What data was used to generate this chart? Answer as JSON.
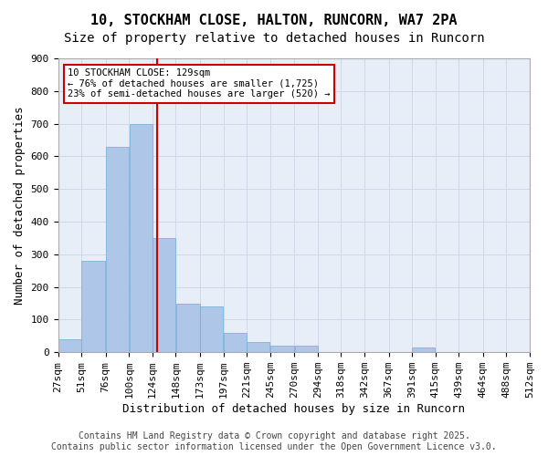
{
  "title_line1": "10, STOCKHAM CLOSE, HALTON, RUNCORN, WA7 2PA",
  "title_line2": "Size of property relative to detached houses in Runcorn",
  "xlabel": "Distribution of detached houses by size in Runcorn",
  "ylabel": "Number of detached properties",
  "bar_edges": [
    27,
    51,
    76,
    100,
    124,
    148,
    173,
    197,
    221,
    245,
    270,
    294,
    318,
    342,
    367,
    391,
    415,
    439,
    464,
    488,
    512
  ],
  "bar_heights": [
    40,
    280,
    630,
    700,
    350,
    150,
    140,
    60,
    30,
    20,
    20,
    0,
    0,
    0,
    0,
    15,
    0,
    0,
    0,
    0
  ],
  "bar_color": "#aec6e8",
  "bar_edgecolor": "#6baed6",
  "grid_color": "#d0d8e8",
  "background_color": "#e8eef8",
  "vline_x": 129,
  "vline_color": "#cc0000",
  "annotation_text": "10 STOCKHAM CLOSE: 129sqm\n← 76% of detached houses are smaller (1,725)\n23% of semi-detached houses are larger (520) →",
  "annotation_box_color": "#cc0000",
  "ylim": [
    0,
    900
  ],
  "yticks": [
    0,
    100,
    200,
    300,
    400,
    500,
    600,
    700,
    800,
    900
  ],
  "tick_labels": [
    "27sqm",
    "51sqm",
    "76sqm",
    "100sqm",
    "124sqm",
    "148sqm",
    "173sqm",
    "197sqm",
    "221sqm",
    "245sqm",
    "270sqm",
    "294sqm",
    "318sqm",
    "342sqm",
    "367sqm",
    "391sqm",
    "415sqm",
    "439sqm",
    "464sqm",
    "488sqm",
    "512sqm"
  ],
  "footer_text": "Contains HM Land Registry data © Crown copyright and database right 2025.\nContains public sector information licensed under the Open Government Licence v3.0.",
  "title_fontsize": 11,
  "subtitle_fontsize": 10,
  "axis_label_fontsize": 9,
  "tick_fontsize": 8,
  "footer_fontsize": 7
}
